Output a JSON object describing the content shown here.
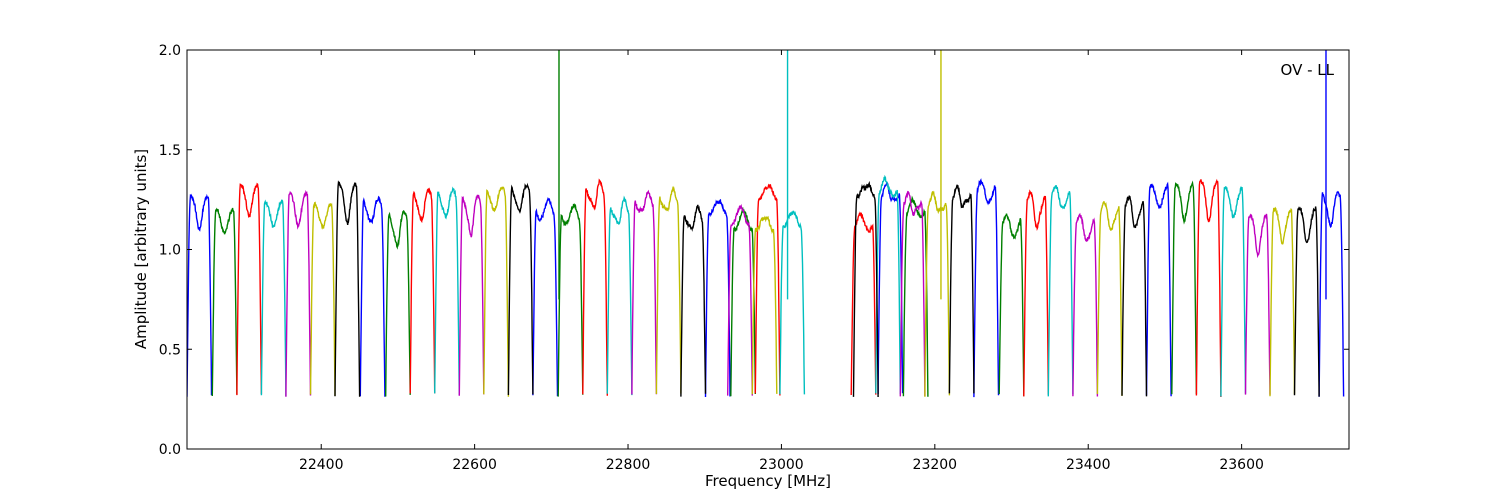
{
  "chart_data": {
    "type": "line",
    "xlabel": "Frequency [MHz]",
    "ylabel": "Amplitude [arbitrary units]",
    "annotation": "OV - LL",
    "xlim": [
      22225,
      23740
    ],
    "ylim": [
      0.0,
      2.0
    ],
    "xticks": [
      22400,
      22600,
      22800,
      23000,
      23200,
      23400,
      23600
    ],
    "xtick_labels": [
      "22400",
      "22600",
      "22800",
      "23000",
      "23200",
      "23400",
      "23600"
    ],
    "yticks": [
      0.0,
      0.5,
      1.0,
      1.5,
      2.0
    ],
    "ytick_labels": [
      "0.0",
      "0.5",
      "1.0",
      "1.5",
      "2.0"
    ],
    "grid": false,
    "color_cycle": [
      "#0000ff",
      "#007f00",
      "#ff0000",
      "#00bfbf",
      "#bf00bf",
      "#bfbf00",
      "#000000"
    ],
    "band_width_mhz": 32,
    "band_profile": "each channel is a passband rising from ~0.27 at its edges to a plateau of ~1.1-1.3; successive channels cycle through the seven colors",
    "series": [
      {
        "color": "#0000ff",
        "band_starts": [
          22225,
          22451,
          22676,
          22901,
          23126,
          23251,
          23476,
          23701
        ],
        "spike_x": [
          23710
        ],
        "spike_y": [
          2.0
        ]
      },
      {
        "color": "#007f00",
        "band_starts": [
          22258,
          22484,
          22709,
          22934,
          23159,
          23284,
          23509
        ],
        "spike_x": [
          22710
        ],
        "spike_y": [
          2.0
        ]
      },
      {
        "color": "#ff0000",
        "band_starts": [
          22290,
          22516,
          22741,
          22966,
          23091,
          23316,
          23541
        ]
      },
      {
        "color": "#00bfbf",
        "band_starts": [
          22322,
          22548,
          22773,
          22998,
          23123,
          23348,
          23573
        ],
        "spike_x": [
          23008
        ],
        "spike_y": [
          2.0
        ]
      },
      {
        "color": "#bf00bf",
        "band_starts": [
          22354,
          22580,
          22805,
          22930,
          23155,
          23380,
          23605
        ]
      },
      {
        "color": "#bfbf00",
        "band_starts": [
          22386,
          22612,
          22837,
          22962,
          23187,
          23412,
          23637
        ],
        "spike_x": [
          23208
        ],
        "spike_y": [
          2.0
        ]
      },
      {
        "color": "#000000",
        "band_starts": [
          22418,
          22644,
          22869,
          23094,
          23219,
          23444,
          23669
        ]
      }
    ]
  }
}
